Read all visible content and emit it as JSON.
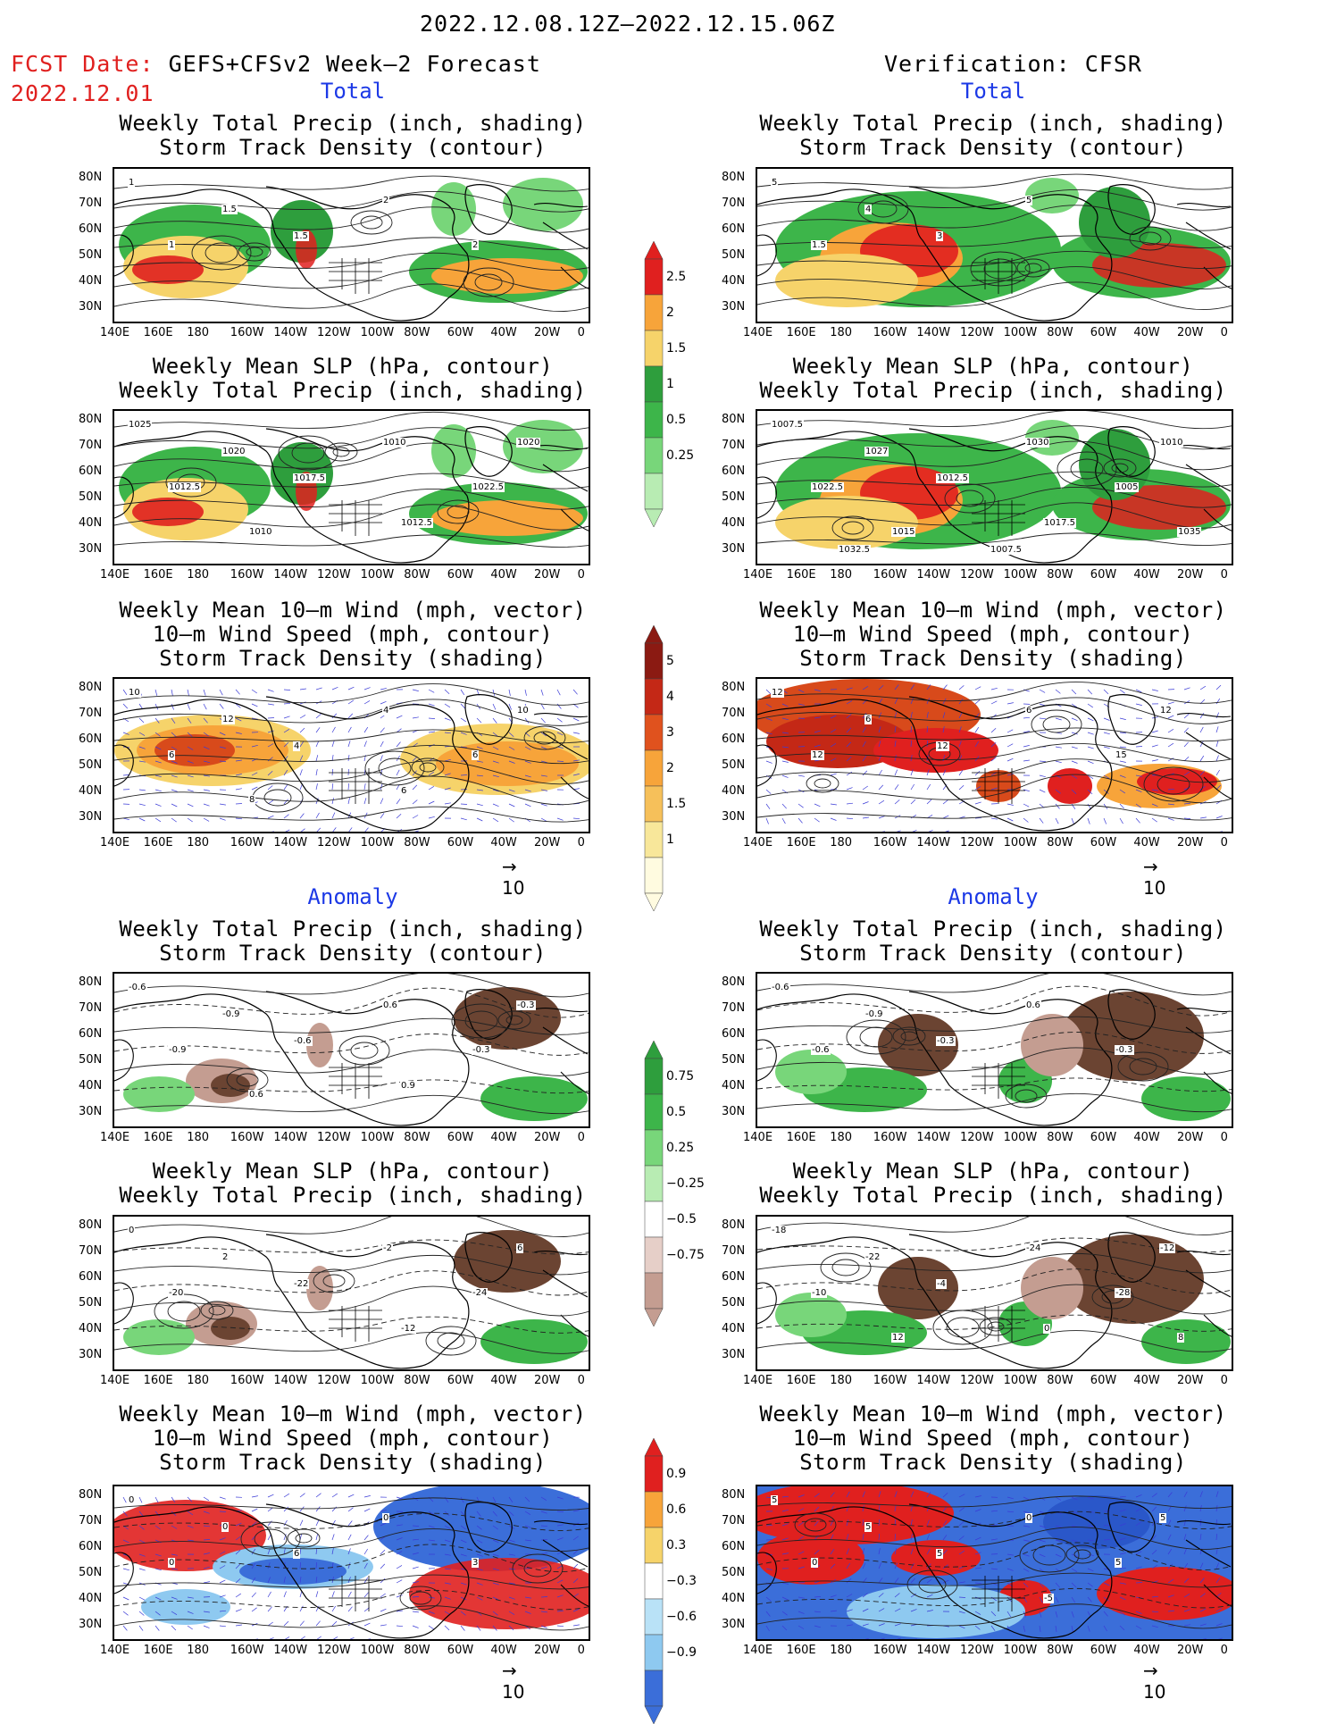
{
  "header": {
    "period": "2022.12.08.12Z—2022.12.15.06Z",
    "fcst_label": "FCST Date:",
    "fcst_model": "GEFS+CFSv2 Week—2 Forecast",
    "fcst_date": "2022.12.01",
    "verification": "Verification: CFSR"
  },
  "sections": {
    "total": "Total",
    "anomaly": "Anomaly"
  },
  "titles": {
    "precip_storm": [
      "Weekly Total Precip (inch, shading)",
      "Storm Track Density (contour)"
    ],
    "slp_precip": [
      "Weekly Mean SLP (hPa, contour)",
      "Weekly Total Precip (inch, shading)"
    ],
    "wind": [
      "Weekly Mean 10—m Wind (mph, vector)",
      "10—m Wind Speed (mph, contour)",
      "Storm Track Density (shading)"
    ]
  },
  "axes": {
    "lat": [
      "80N",
      "70N",
      "60N",
      "50N",
      "40N",
      "30N"
    ],
    "lon": [
      "140E",
      "160E",
      "180",
      "160W",
      "140W",
      "120W",
      "100W",
      "80W",
      "60W",
      "40W",
      "20W",
      "0"
    ]
  },
  "colorbars": {
    "precip_total": [
      "2.5",
      "2",
      "1.5",
      "1",
      "0.5",
      "0.25"
    ],
    "storm_total": [
      "5",
      "4",
      "3",
      "2",
      "1.5",
      "1"
    ],
    "precip_anom": [
      "0.75",
      "0.5",
      "0.25",
      "−0.25",
      "−0.5",
      "−0.75"
    ],
    "storm_anom": [
      "0.9",
      "0.6",
      "0.3",
      "−0.3",
      "−0.6",
      "−0.9"
    ]
  },
  "vector_ref": "10",
  "colors": {
    "title_red": "#e0201f",
    "section_blue": "#1c39e6"
  },
  "contour_labels": {
    "fc_slp_total": [
      "1025",
      "1020",
      "1010",
      "1012.5",
      "1017.5",
      "1022.5",
      "1020",
      "1012.5",
      "1010"
    ],
    "ve_slp_total": [
      "1007.5",
      "1027",
      "1030",
      "1022.5",
      "1012.5",
      "1005",
      "1010",
      "1017.5",
      "1015",
      "1035",
      "1032.5",
      "1007.5"
    ],
    "fc_precip_total": [
      "1",
      "1.5",
      "2",
      "1",
      "1.5",
      "2"
    ],
    "ve_precip_total": [
      "5",
      "4",
      "5",
      "1.5",
      "3"
    ],
    "fc_wind_total": [
      "10",
      "12",
      "4",
      "6",
      "4",
      "6",
      "10",
      "6",
      "8"
    ],
    "ve_wind_total": [
      "12",
      "6",
      "6",
      "12",
      "12",
      "15",
      "12"
    ],
    "fc_precip_anom": [
      "-0.6",
      "-0.9",
      "0.6",
      "-0.9",
      "-0.6",
      "-0.3",
      "-0.3",
      "0.9",
      "0.6"
    ],
    "ve_precip_anom": [
      "-0.6",
      "-0.9",
      "0.6",
      "-0.6",
      "-0.3",
      "-0.3"
    ],
    "fc_slp_anom": [
      "0",
      "2",
      "-2",
      "-20",
      "-22",
      "-24",
      "6",
      "-12"
    ],
    "ve_slp_anom": [
      "-18",
      "-22",
      "-24",
      "-10",
      "-4",
      "-28",
      "-12",
      "0",
      "12",
      "8"
    ],
    "fc_wind_anom": [
      "0",
      "0",
      "0",
      "0",
      "6",
      "3"
    ],
    "ve_wind_anom": [
      "5",
      "5",
      "0",
      "0",
      "5",
      "5",
      "5",
      "-5"
    ]
  }
}
